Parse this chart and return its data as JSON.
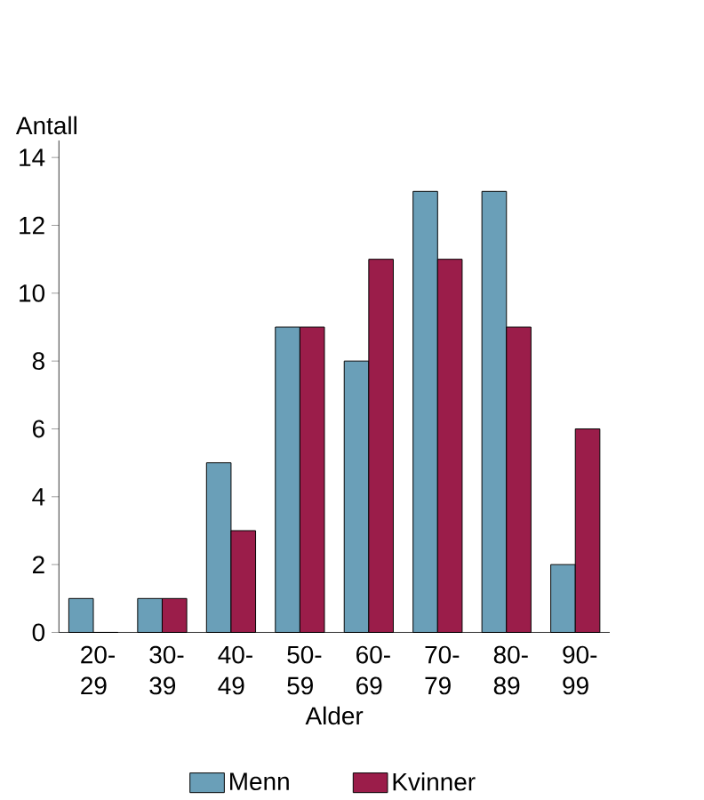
{
  "chart_data": {
    "type": "bar",
    "xlabel": "Alder",
    "ylabel": "Antall",
    "categories": [
      "20-29",
      "30-39",
      "40-49",
      "50-59",
      "60-69",
      "70-79",
      "80-89",
      "90-99"
    ],
    "series": [
      {
        "name": "Menn",
        "color": "#6a9fb8",
        "values": [
          1,
          1,
          5,
          9,
          8,
          13,
          13,
          2
        ]
      },
      {
        "name": "Kvinner",
        "color": "#9b1d4a",
        "values": [
          0,
          1,
          3,
          9,
          11,
          11,
          9,
          6
        ]
      }
    ],
    "ylim": [
      0,
      14.5
    ],
    "yticks": [
      0,
      2,
      4,
      6,
      8,
      10,
      12,
      14
    ],
    "grid": false,
    "legend": "bottom"
  }
}
